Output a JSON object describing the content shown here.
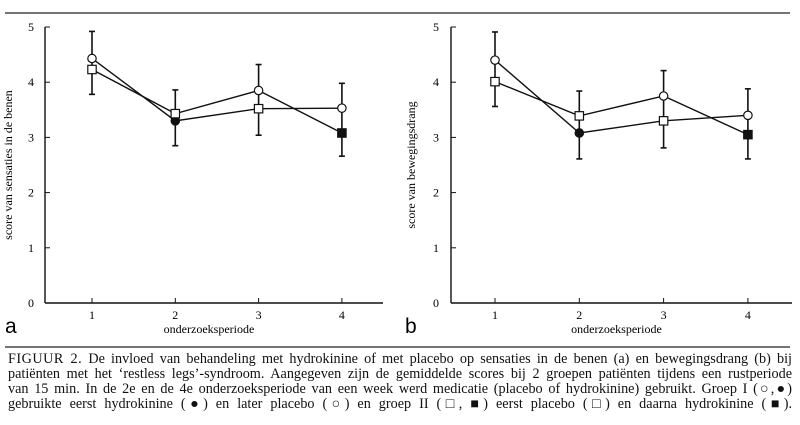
{
  "chart_data": [
    {
      "type": "line",
      "panel_label": "a",
      "xlabel": "onderzoeksperiode",
      "ylabel": "score van sensaties in de benen",
      "categories": [
        "1",
        "2",
        "3",
        "4"
      ],
      "ylim": [
        0,
        5
      ],
      "yticks": [
        "0",
        "1",
        "2",
        "3",
        "4",
        "5"
      ],
      "grid": false,
      "series": [
        {
          "values": [
            4.43,
            3.3,
            3.52,
            3.53
          ],
          "markers": [
            "circle-open",
            "circle-filled",
            "square-open",
            "circle-open"
          ]
        },
        {
          "values": [
            4.23,
            3.43,
            3.85,
            3.08
          ],
          "markers": [
            "square-open",
            "square-open",
            "circle-open",
            "square-filled"
          ]
        }
      ],
      "error_bars": [
        {
          "upper": 4.92,
          "lower": 3.78
        },
        {
          "upper": 3.86,
          "lower": 2.85
        },
        {
          "upper": 4.32,
          "lower": 3.04
        },
        {
          "upper": 3.98,
          "lower": 2.66
        }
      ]
    },
    {
      "type": "line",
      "panel_label": "b",
      "xlabel": "onderzoeksperiode",
      "ylabel": "score van bewegingsdrang",
      "categories": [
        "1",
        "2",
        "3",
        "4"
      ],
      "ylim": [
        0,
        5
      ],
      "yticks": [
        "0",
        "1",
        "2",
        "3",
        "4",
        "5"
      ],
      "grid": false,
      "series": [
        {
          "values": [
            4.4,
            3.08,
            3.3,
            3.4
          ],
          "markers": [
            "circle-open",
            "circle-filled",
            "square-open",
            "circle-open"
          ]
        },
        {
          "values": [
            4.01,
            3.39,
            3.75,
            3.05
          ],
          "markers": [
            "square-open",
            "square-open",
            "circle-open",
            "square-filled"
          ]
        }
      ],
      "error_bars": [
        {
          "upper": 4.91,
          "lower": 3.56
        },
        {
          "upper": 3.84,
          "lower": 2.61
        },
        {
          "upper": 4.21,
          "lower": 2.81
        },
        {
          "upper": 3.88,
          "lower": 2.61
        }
      ]
    }
  ],
  "caption": {
    "figure_label": "FIGUUR 2.",
    "lines": [
      "De invloed van behandeling met hydrokinine of met placebo op sensaties in de benen (a) en bewegingsdrang (b) bij",
      "patiënten met het ‘restless legs’-syndroom. Aangegeven zijn de gemiddelde scores bij 2 groepen patiënten tijdens een rustperiode",
      "van 15 min. In de 2e en de 4e onderzoeksperiode van een week werd medicatie (placebo of hydrokinine) gebruikt. Groep I (○,●)",
      "gebruikte eerst hydrokinine (●) en later placebo (○) en groep II (□, ■) eerst placebo (□) en daarna hydrokinine (■)."
    ]
  }
}
